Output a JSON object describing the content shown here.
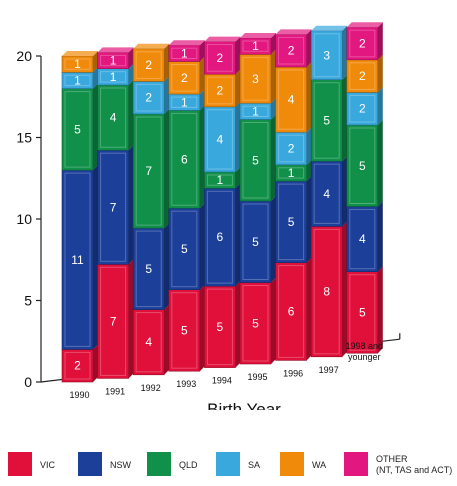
{
  "chart_data": {
    "type": "bar",
    "stacked": true,
    "title": "",
    "xlabel": "Birth Year",
    "ylabel": "",
    "ylim": [
      0,
      20
    ],
    "yticks": [
      "0",
      "5",
      "10",
      "15",
      "20"
    ],
    "categories": [
      "1990",
      "1991",
      "1992",
      "1993",
      "1994",
      "1995",
      "1996",
      "1997",
      "1998 and younger"
    ],
    "series": [
      {
        "name": "VIC",
        "color": "#e0103a",
        "values": [
          2,
          7,
          4,
          5,
          5,
          5,
          6,
          8,
          5
        ]
      },
      {
        "name": "NSW",
        "color": "#1c3f9a",
        "values": [
          11,
          7,
          5,
          5,
          6,
          5,
          5,
          4,
          4
        ]
      },
      {
        "name": "QLD",
        "color": "#11904a",
        "values": [
          5,
          4,
          7,
          6,
          1,
          5,
          1,
          5,
          5
        ]
      },
      {
        "name": "SA",
        "color": "#39a8dd",
        "values": [
          1,
          1,
          2,
          1,
          4,
          1,
          2,
          3,
          2
        ]
      },
      {
        "name": "WA",
        "color": "#f08a0b",
        "values": [
          1,
          0,
          2,
          2,
          2,
          3,
          4,
          0,
          2
        ]
      },
      {
        "name": "OTHER (NT, TAS and ACT)",
        "color": "#e2177f",
        "values": [
          0,
          1,
          0,
          1,
          2,
          1,
          2,
          0,
          2
        ]
      }
    ]
  },
  "legend": [
    {
      "label": "VIC",
      "color": "#e0103a"
    },
    {
      "label": "NSW",
      "color": "#1c3f9a"
    },
    {
      "label": "QLD",
      "color": "#11904a"
    },
    {
      "label": "SA",
      "color": "#39a8dd"
    },
    {
      "label": "WA",
      "color": "#f08a0b"
    },
    {
      "label": "OTHER\n(NT, TAS and ACT)",
      "color": "#e2177f"
    }
  ]
}
